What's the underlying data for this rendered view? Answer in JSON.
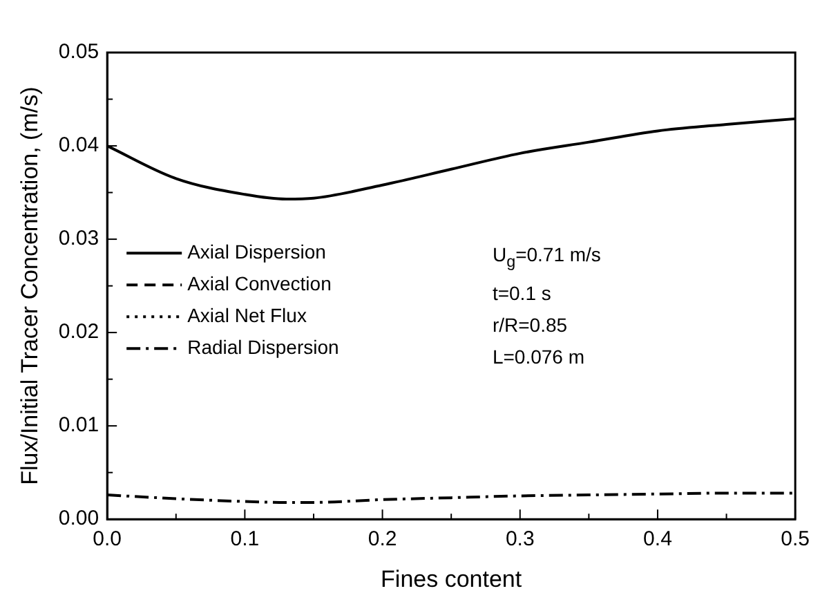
{
  "chart_data": {
    "type": "line",
    "xlabel": "Fines content",
    "ylabel": "Flux/Initial Tracer Concentration, (m/s)",
    "xlim": [
      0,
      0.5
    ],
    "xticks": [
      {
        "value": 0,
        "label": "0.0"
      },
      0.1,
      0.2,
      0.3,
      0.4,
      0.5
    ],
    "ylim": [
      0,
      0.05
    ],
    "yticks": [
      {
        "value": 0,
        "label": "0.00"
      },
      {
        "value": 0.01,
        "label": "0.01"
      },
      {
        "value": 0.02,
        "label": "0.02"
      },
      {
        "value": 0.03,
        "label": "0.03"
      },
      {
        "value": 0.04,
        "label": "0.04"
      },
      {
        "value": 0.05,
        "label": "0.05"
      }
    ],
    "grid": false,
    "legend": "left",
    "marker": "none",
    "x": [
      0,
      0.05,
      0.1,
      0.13,
      0.15,
      0.2,
      0.25,
      0.3,
      0.35,
      0.4,
      0.45,
      0.5
    ],
    "series": [
      {
        "name": "Axial Dispersion",
        "color": "#000000",
        "line_style": "solid",
        "values": [
          0.04,
          0.0365,
          0.0348,
          0.0343,
          0.0344,
          0.0358,
          0.0375,
          0.0392,
          0.0404,
          0.0416,
          0.0423,
          0.0429
        ]
      },
      {
        "name": "Axial Convection",
        "color": "#000000",
        "line_style": "dashed",
        "values": [
          null,
          null,
          null,
          null,
          null,
          null,
          null,
          null,
          null,
          null,
          null,
          null
        ]
      },
      {
        "name": "Axial Net Flux",
        "color": "#000000",
        "line_style": "dotted",
        "values": [
          null,
          null,
          null,
          null,
          null,
          null,
          null,
          null,
          null,
          null,
          null,
          null
        ]
      },
      {
        "name": "Radial Dispersion",
        "color": "#000000",
        "line_style": "dashdot",
        "values": [
          0.0026,
          0.0022,
          0.0019,
          0.0018,
          0.0018,
          0.0021,
          0.0023,
          0.0025,
          0.0026,
          0.0027,
          0.0028,
          0.0028
        ]
      }
    ],
    "annotations": [
      "U$_{g}$=0.71 m/s",
      "t=0.1 s",
      "r/R=0.85",
      "L=0.076 m"
    ]
  }
}
